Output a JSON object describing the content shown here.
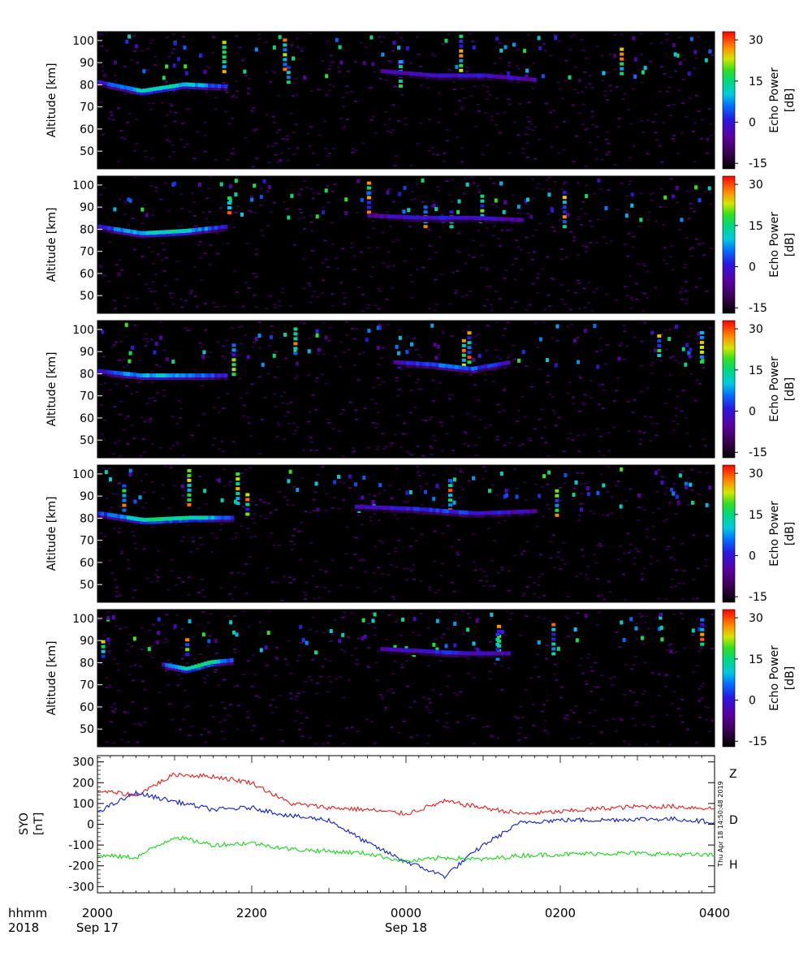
{
  "panels": {
    "ylabel": "Altitude [km]",
    "yticks": [
      50,
      60,
      70,
      80,
      90,
      100
    ],
    "ylim": [
      42,
      104
    ],
    "colorbar": {
      "label": "Echo Power",
      "unit": "[dB]",
      "ticks": [
        30,
        15,
        0,
        -15
      ],
      "range": [
        -17,
        33
      ]
    }
  },
  "mag": {
    "ylabel": "SYO",
    "yunit": "[nT]",
    "yticks": [
      300,
      200,
      100,
      0,
      -100,
      -200,
      -300
    ],
    "ylim": [
      -330,
      330
    ],
    "timestamp": "Thu Apr 18 14:50:48 2019"
  },
  "xaxis": {
    "row1_label": "hhmm",
    "row2_label": "2018",
    "ticks": [
      "2000",
      "2200",
      "0000",
      "0200",
      "0400"
    ],
    "dates": [
      "Sep 17",
      "Sep 18"
    ]
  },
  "chart_data": [
    {
      "type": "heatmap",
      "ylabel": "Altitude [km]",
      "colorbar_label": "Echo Power [dB]",
      "x": "2018 Sep 17 20:00 to Sep 18 04:00",
      "ylim": [
        42,
        104
      ],
      "zlim": [
        -15,
        30
      ],
      "layers": [
        {
          "start": "20:00",
          "end": "21:40",
          "alt": [
            81,
            77,
            80,
            79
          ],
          "peak_db": 12
        },
        {
          "start": "23:40",
          "end": "01:40",
          "alt": [
            86,
            84,
            84,
            82
          ],
          "peak_db": 0
        }
      ]
    },
    {
      "type": "heatmap",
      "ylabel": "Altitude [km]",
      "colorbar_label": "Echo Power [dB]",
      "x": "2018 Sep 17 20:00 to Sep 18 04:00",
      "ylim": [
        42,
        104
      ],
      "zlim": [
        -15,
        30
      ],
      "layers": [
        {
          "start": "20:00",
          "end": "21:40",
          "alt": [
            81,
            78,
            79,
            81
          ],
          "peak_db": 12
        },
        {
          "start": "23:30",
          "end": "01:30",
          "alt": [
            86,
            85,
            85,
            84
          ],
          "peak_db": 0
        }
      ]
    },
    {
      "type": "heatmap",
      "ylabel": "Altitude [km]",
      "colorbar_label": "Echo Power [dB]",
      "x": "2018 Sep 17 20:00 to Sep 18 04:00",
      "ylim": [
        42,
        104
      ],
      "zlim": [
        -15,
        30
      ],
      "layers": [
        {
          "start": "20:00",
          "end": "21:40",
          "alt": [
            81,
            79,
            79,
            79
          ],
          "peak_db": 10
        },
        {
          "start": "23:50",
          "end": "01:20",
          "alt": [
            85,
            84,
            82,
            85
          ],
          "peak_db": 5
        }
      ]
    },
    {
      "type": "heatmap",
      "ylabel": "Altitude [km]",
      "colorbar_label": "Echo Power [dB]",
      "x": "2018 Sep 17 20:00 to Sep 18 04:00",
      "ylim": [
        42,
        104
      ],
      "zlim": [
        -15,
        30
      ],
      "layers": [
        {
          "start": "20:00",
          "end": "21:45",
          "alt": [
            82,
            79,
            80,
            80
          ],
          "peak_db": 15
        },
        {
          "start": "23:20",
          "end": "01:40",
          "alt": [
            85,
            84,
            82,
            83
          ],
          "peak_db": 2
        }
      ]
    },
    {
      "type": "heatmap",
      "ylabel": "Altitude [km]",
      "colorbar_label": "Echo Power [dB]",
      "x": "2018 Sep 17 20:00 to Sep 18 04:00",
      "ylim": [
        42,
        104
      ],
      "zlim": [
        -15,
        30
      ],
      "layers": [
        {
          "start": "20:50",
          "end": "21:45",
          "alt": [
            79,
            77,
            80,
            81
          ],
          "peak_db": 15
        },
        {
          "start": "23:40",
          "end": "01:20",
          "alt": [
            86,
            85,
            84,
            84
          ],
          "peak_db": 0
        }
      ]
    },
    {
      "type": "line",
      "xlabel": "hhmm",
      "ylabel": "SYO [nT]",
      "x": [
        "20:00",
        "20:30",
        "21:00",
        "21:30",
        "22:00",
        "22:30",
        "23:00",
        "23:30",
        "00:00",
        "00:30",
        "01:00",
        "01:30",
        "02:00",
        "02:30",
        "03:00",
        "03:30",
        "04:00"
      ],
      "ylim": [
        -330,
        330
      ],
      "series": [
        {
          "name": "Z",
          "color": "#e8201e",
          "values": [
            160,
            140,
            240,
            230,
            200,
            100,
            80,
            70,
            50,
            110,
            80,
            50,
            60,
            75,
            85,
            85,
            75
          ]
        },
        {
          "name": "D",
          "color": "#1ad81a",
          "values": [
            -150,
            -160,
            -60,
            -100,
            -90,
            -120,
            -130,
            -140,
            -180,
            -160,
            -170,
            -150,
            -145,
            -140,
            -140,
            -145,
            -150
          ]
        },
        {
          "name": "H",
          "color": "#0d1ec8",
          "values": [
            60,
            150,
            110,
            70,
            80,
            40,
            20,
            -90,
            -180,
            -250,
            -100,
            10,
            20,
            20,
            25,
            25,
            10
          ]
        }
      ]
    }
  ]
}
